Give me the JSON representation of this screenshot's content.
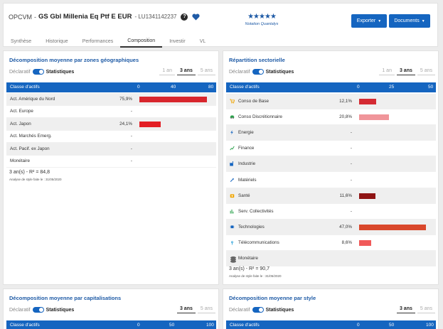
{
  "header": {
    "prefix": "OPCVM",
    "dash": "-",
    "fund_name": "GS Gbl Millenia Eq Ptf E EUR",
    "isin": "- LU1341142237",
    "help_glyph": "?",
    "stars": "★★★★★",
    "rating_label": "Notation Quantalys",
    "export_label": "Exporter",
    "documents_label": "Documents",
    "accent": "#1565c0"
  },
  "tabs": [
    "Synthèse",
    "Historique",
    "Performances",
    "Composition",
    "Investir",
    "VL"
  ],
  "active_tab": "Composition",
  "geo": {
    "title": "Décomposition moyenne par zones géographiques",
    "declaratif": "Déclaratif",
    "statistiques": "Statistiques",
    "periods": [
      "1 an",
      "3 ans",
      "5 ans"
    ],
    "active_period": "3 ans",
    "col_header": "Classe d'actifs",
    "ticks": [
      "0",
      "40",
      "80"
    ],
    "axis_max": 80,
    "rows": [
      {
        "label": "Act. Amérique du Nord",
        "value_text": "75,9%",
        "value": 75.9,
        "color": "#d8262d"
      },
      {
        "label": "Act. Europe",
        "value_text": "-",
        "value": 0,
        "color": ""
      },
      {
        "label": "Act. Japon",
        "value_text": "24,1%",
        "value": 24.1,
        "color": "#e31e24"
      },
      {
        "label": "Act. Marchés Emerg.",
        "value_text": "-",
        "value": 0,
        "color": ""
      },
      {
        "label": "Act. Pacif. ex Japon",
        "value_text": "-",
        "value": 0,
        "color": ""
      },
      {
        "label": "Monétaire",
        "value_text": "-",
        "value": 0,
        "color": ""
      }
    ],
    "foot1": "3 an(s) - R² = 84,8",
    "foot2": "Analyse de style faite le : 31/05/2020"
  },
  "sector": {
    "title": "Répartition sectorielle",
    "declaratif": "Déclaratif",
    "statistiques": "Statistiques",
    "periods": [
      "1 an",
      "3 ans",
      "5 ans"
    ],
    "active_period": "3 ans",
    "col_header": "Classe d'actifs",
    "ticks": [
      "0",
      "25",
      "50"
    ],
    "axis_max": 50,
    "rows": [
      {
        "label": "Conso de Base",
        "icon": "cart-icon",
        "icon_color": "#f0a500",
        "value_text": "12,1%",
        "value": 12.1,
        "color": "#d42a33"
      },
      {
        "label": "Conso Discrétionnaire",
        "icon": "car-icon",
        "icon_color": "#2aa14b",
        "value_text": "20,8%",
        "value": 20.8,
        "color": "#f0959a"
      },
      {
        "label": "Energie",
        "icon": "lightning-icon",
        "icon_color": "#1565c0",
        "value_text": "-",
        "value": 0,
        "color": ""
      },
      {
        "label": "Finance",
        "icon": "chart-up-icon",
        "icon_color": "#2aa14b",
        "value_text": "-",
        "value": 0,
        "color": ""
      },
      {
        "label": "Industrie",
        "icon": "factory-icon",
        "icon_color": "#1565c0",
        "value_text": "-",
        "value": 0,
        "color": ""
      },
      {
        "label": "Matériels",
        "icon": "tools-icon",
        "icon_color": "#1565c0",
        "value_text": "-",
        "value": 0,
        "color": ""
      },
      {
        "label": "Santé",
        "icon": "medical-case-icon",
        "icon_color": "#f0a500",
        "value_text": "11,6%",
        "value": 11.6,
        "color": "#8f1414"
      },
      {
        "label": "Serv. Collectivités",
        "icon": "utilities-icon",
        "icon_color": "#2aa14b",
        "value_text": "-",
        "value": 0,
        "color": ""
      },
      {
        "label": "Technologies",
        "icon": "chip-icon",
        "icon_color": "#1565c0",
        "value_text": "47,0%",
        "value": 47.0,
        "color": "#d9472b"
      },
      {
        "label": "Télécommunications",
        "icon": "antenna-icon",
        "icon_color": "#1a9bd7",
        "value_text": "8,6%",
        "value": 8.6,
        "color": "#f05a5a"
      },
      {
        "label": "Monétaire",
        "icon": "coins-icon",
        "icon_color": "#666666",
        "value_text": "",
        "value": 0,
        "color": ""
      }
    ],
    "foot1": "3 an(s) - R² = 90,7",
    "foot2": "Analyse de style faite le : 31/05/2020"
  },
  "cap": {
    "title": "Décomposition moyenne par capitalisations",
    "declaratif": "Déclaratif",
    "statistiques": "Statistiques",
    "periods": [
      "3 ans",
      "5 ans"
    ],
    "active_period": "3 ans",
    "col_header": "Classe d'actifs",
    "ticks": [
      "0",
      "50",
      "100"
    ]
  },
  "style": {
    "title": "Décomposition moyenne par style",
    "declaratif": "Déclaratif",
    "statistiques": "Statistiques",
    "periods": [
      "3 ans",
      "5 ans"
    ],
    "active_period": "3 ans",
    "col_header": "Classe d'actifs",
    "ticks": [
      "0",
      "50",
      "100"
    ]
  }
}
